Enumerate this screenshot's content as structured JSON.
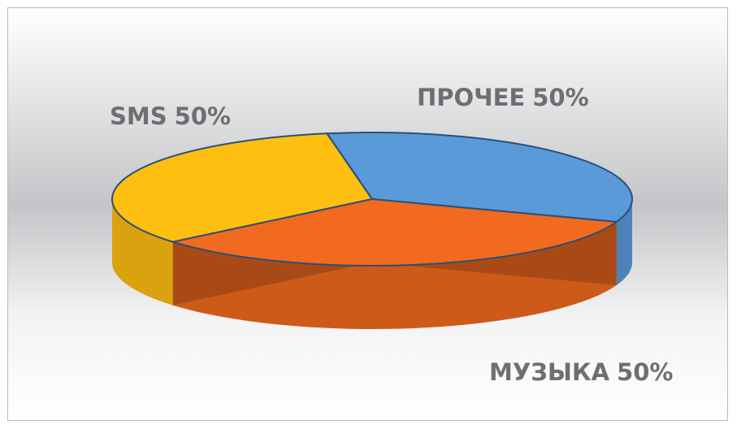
{
  "chart_data": {
    "type": "pie",
    "categories": [
      "SMS",
      "ПРОЧЕЕ",
      "МУЗЫКА"
    ],
    "values": [
      50,
      50,
      50
    ],
    "value_labels": [
      "50%",
      "50%",
      "50%"
    ],
    "colors": [
      "#ffbf10",
      "#5b9ad8",
      "#f26a1f"
    ]
  }
}
